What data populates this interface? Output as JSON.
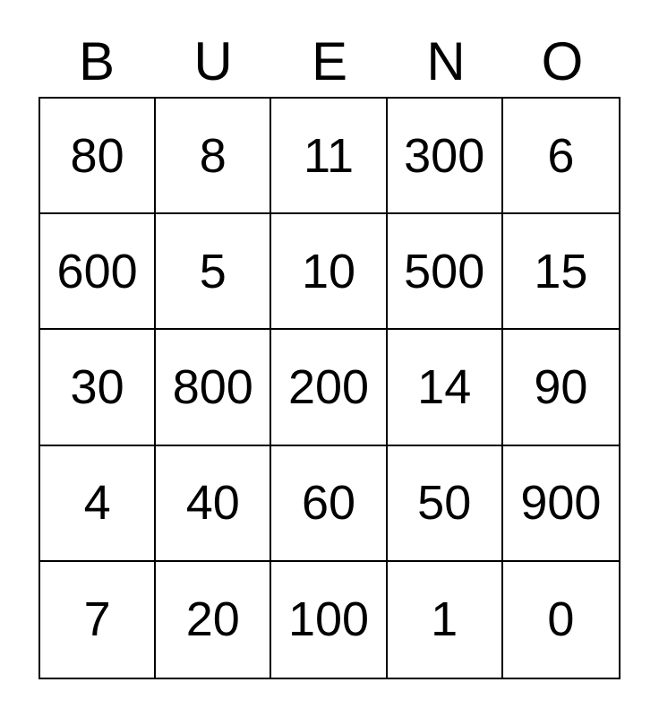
{
  "card": {
    "title": "BUENO",
    "letters": [
      "B",
      "U",
      "E",
      "N",
      "O"
    ],
    "rows": [
      [
        "80",
        "8",
        "11",
        "300",
        "6"
      ],
      [
        "600",
        "5",
        "10",
        "500",
        "15"
      ],
      [
        "30",
        "800",
        "200",
        "14",
        "90"
      ],
      [
        "4",
        "40",
        "60",
        "50",
        "900"
      ],
      [
        "7",
        "20",
        "100",
        "1",
        "0"
      ]
    ],
    "colors": {
      "background": "#ffffff",
      "grid_line": "#000000",
      "text": "#000000"
    }
  }
}
